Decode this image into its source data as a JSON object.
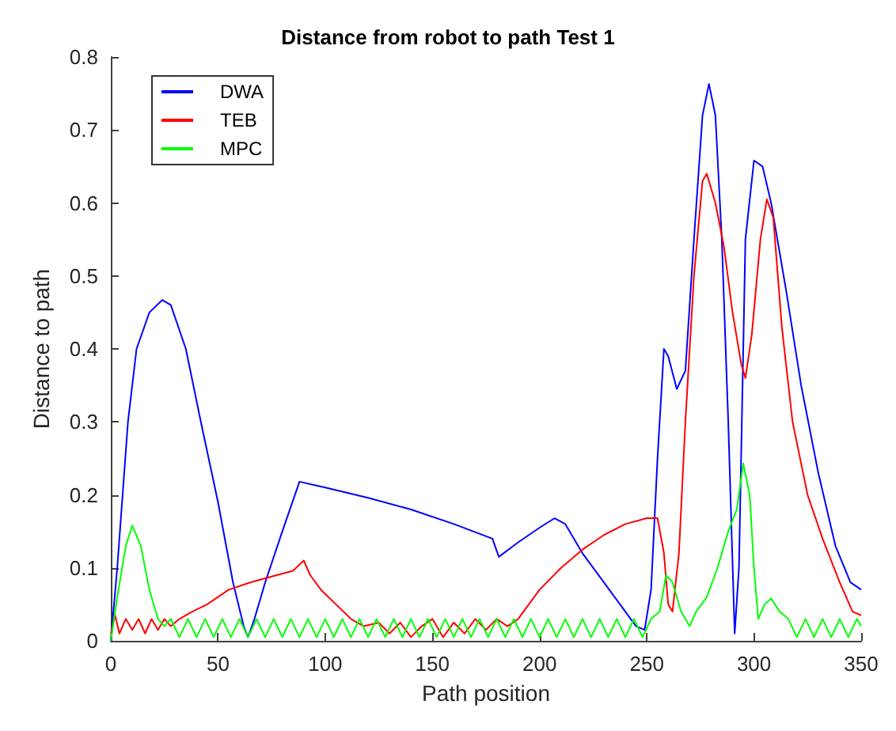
{
  "chart_data": {
    "type": "line",
    "title": "Distance from robot to path Test 1",
    "xlabel": "Path position",
    "ylabel": "Distance to path",
    "xlim": [
      0,
      350
    ],
    "xticks": [
      0,
      50,
      100,
      150,
      200,
      250,
      300,
      350
    ],
    "ylim": [
      0,
      0.8
    ],
    "yticks": [
      0,
      0.1,
      0.2,
      0.3,
      0.4,
      0.5,
      0.6,
      0.7,
      0.8
    ],
    "grid": false,
    "legend": "top left",
    "marker": "none",
    "line_style": "solid",
    "series": [
      {
        "name": "DWA",
        "color": "#0000ff",
        "x": [
          0,
          3,
          8,
          12,
          18,
          24,
          28,
          35,
          42,
          50,
          57,
          62,
          64,
          67,
          72,
          80,
          88,
          100,
          120,
          140,
          160,
          178,
          181,
          190,
          200,
          207,
          212,
          220,
          230,
          240,
          245,
          249,
          252,
          255,
          258,
          260,
          264,
          268,
          272,
          276,
          279,
          282,
          285,
          288,
          291,
          293,
          296,
          300,
          304,
          308,
          315,
          322,
          330,
          338,
          345,
          350
        ],
        "values": [
          0,
          0.1,
          0.3,
          0.4,
          0.45,
          0.467,
          0.46,
          0.4,
          0.3,
          0.19,
          0.08,
          0.02,
          0.005,
          0.03,
          0.08,
          0.15,
          0.218,
          0.21,
          0.196,
          0.18,
          0.16,
          0.14,
          0.115,
          0.135,
          0.155,
          0.168,
          0.16,
          0.12,
          0.08,
          0.04,
          0.02,
          0.015,
          0.07,
          0.25,
          0.4,
          0.39,
          0.345,
          0.37,
          0.55,
          0.72,
          0.763,
          0.72,
          0.55,
          0.3,
          0.01,
          0.1,
          0.55,
          0.658,
          0.65,
          0.6,
          0.48,
          0.35,
          0.23,
          0.13,
          0.08,
          0.07
        ]
      },
      {
        "name": "TEB",
        "color": "#ff0000",
        "x": [
          0,
          2,
          4,
          7,
          10,
          13,
          16,
          19,
          22,
          25,
          28,
          32,
          38,
          45,
          55,
          65,
          75,
          85,
          90,
          93,
          98,
          105,
          112,
          118,
          125,
          130,
          135,
          140,
          145,
          150,
          155,
          160,
          165,
          170,
          175,
          180,
          185,
          190,
          195,
          200,
          210,
          220,
          230,
          240,
          250,
          255,
          258,
          260,
          262,
          265,
          268,
          272,
          276,
          278,
          282,
          286,
          290,
          294,
          296,
          299,
          303,
          306,
          309,
          313,
          318,
          325,
          332,
          340,
          346,
          350
        ],
        "values": [
          0.01,
          0.035,
          0.01,
          0.03,
          0.015,
          0.03,
          0.01,
          0.03,
          0.015,
          0.03,
          0.02,
          0.03,
          0.04,
          0.05,
          0.07,
          0.08,
          0.088,
          0.096,
          0.11,
          0.09,
          0.07,
          0.05,
          0.03,
          0.02,
          0.025,
          0.01,
          0.025,
          0.005,
          0.02,
          0.03,
          0.005,
          0.025,
          0.01,
          0.03,
          0.015,
          0.03,
          0.02,
          0.03,
          0.05,
          0.07,
          0.1,
          0.125,
          0.145,
          0.16,
          0.168,
          0.168,
          0.12,
          0.05,
          0.04,
          0.12,
          0.3,
          0.5,
          0.63,
          0.64,
          0.6,
          0.54,
          0.45,
          0.38,
          0.36,
          0.42,
          0.55,
          0.605,
          0.58,
          0.43,
          0.3,
          0.2,
          0.14,
          0.08,
          0.04,
          0.035
        ]
      },
      {
        "name": "MPC",
        "color": "#00ff00",
        "x": [
          0,
          3,
          7,
          10,
          14,
          18,
          22,
          25,
          28,
          32,
          36,
          40,
          44,
          48,
          52,
          56,
          60,
          64,
          68,
          72,
          76,
          80,
          84,
          88,
          92,
          96,
          100,
          104,
          108,
          112,
          116,
          120,
          124,
          128,
          132,
          136,
          140,
          144,
          148,
          152,
          156,
          160,
          164,
          168,
          172,
          176,
          180,
          184,
          188,
          192,
          196,
          200,
          204,
          208,
          212,
          216,
          220,
          224,
          228,
          232,
          236,
          240,
          244,
          248,
          252,
          256,
          259,
          262,
          266,
          270,
          273,
          278,
          283,
          288,
          292,
          295,
          298,
          300,
          302,
          305,
          308,
          312,
          316,
          320,
          324,
          328,
          332,
          336,
          340,
          344,
          348,
          350
        ],
        "values": [
          0,
          0.06,
          0.13,
          0.158,
          0.13,
          0.07,
          0.03,
          0.02,
          0.03,
          0.005,
          0.03,
          0.005,
          0.03,
          0.005,
          0.03,
          0.005,
          0.03,
          0.005,
          0.03,
          0.005,
          0.03,
          0.005,
          0.03,
          0.005,
          0.03,
          0.005,
          0.03,
          0.005,
          0.03,
          0.005,
          0.03,
          0.005,
          0.03,
          0.005,
          0.03,
          0.005,
          0.03,
          0.005,
          0.03,
          0.005,
          0.03,
          0.005,
          0.03,
          0.005,
          0.03,
          0.005,
          0.03,
          0.005,
          0.03,
          0.005,
          0.03,
          0.005,
          0.03,
          0.005,
          0.03,
          0.005,
          0.03,
          0.005,
          0.03,
          0.005,
          0.03,
          0.005,
          0.03,
          0.005,
          0.03,
          0.04,
          0.09,
          0.08,
          0.04,
          0.02,
          0.04,
          0.06,
          0.1,
          0.15,
          0.18,
          0.243,
          0.2,
          0.1,
          0.03,
          0.05,
          0.058,
          0.04,
          0.03,
          0.005,
          0.03,
          0.005,
          0.03,
          0.005,
          0.03,
          0.005,
          0.03,
          0.02
        ]
      }
    ]
  }
}
